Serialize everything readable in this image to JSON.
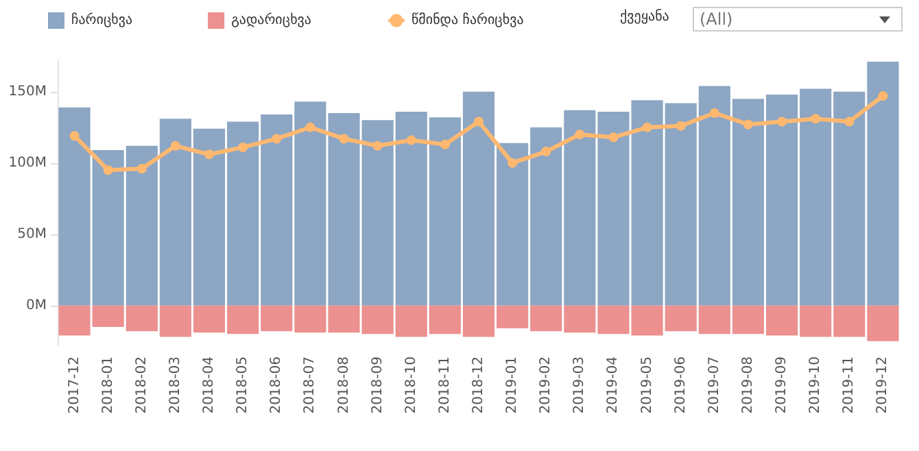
{
  "chart_data": {
    "type": "bar",
    "stacked": true,
    "categories": [
      "2017-12",
      "2018-01",
      "2018-02",
      "2018-03",
      "2018-04",
      "2018-05",
      "2018-06",
      "2018-07",
      "2018-08",
      "2018-09",
      "2018-10",
      "2018-11",
      "2018-12",
      "2019-01",
      "2019-02",
      "2019-03",
      "2019-04",
      "2019-05",
      "2019-06",
      "2019-07",
      "2019-08",
      "2019-09",
      "2019-10",
      "2019-11",
      "2019-12"
    ],
    "series": [
      {
        "name": "ჩარიცხვა",
        "color": "#8ca6c4",
        "values": [
          139,
          109,
          112,
          131,
          124,
          129,
          134,
          143,
          135,
          130,
          136,
          132,
          150,
          114,
          125,
          137,
          136,
          144,
          142,
          154,
          145,
          148,
          152,
          150,
          171
        ]
      },
      {
        "name": "გადარიცხვა",
        "color": "#ec9090",
        "values": [
          -21,
          -15,
          -18,
          -22,
          -19,
          -20,
          -18,
          -19,
          -19,
          -20,
          -22,
          -20,
          -22,
          -16,
          -18,
          -19,
          -20,
          -21,
          -18,
          -20,
          -20,
          -21,
          -22,
          -22,
          -25
        ]
      },
      {
        "name": "წმინდა ჩარიცხვა",
        "type": "line",
        "color": "#ffb870",
        "marker": "circle",
        "values": [
          119,
          95,
          96,
          112,
          106,
          111,
          117,
          125,
          117,
          112,
          116,
          113,
          129,
          100,
          108,
          120,
          118,
          125,
          126,
          135,
          127,
          129,
          131,
          129,
          147
        ]
      }
    ],
    "ylim": [
      -28,
      172
    ],
    "yticks": [
      {
        "value": 0,
        "label": "0M"
      },
      {
        "value": 50,
        "label": "50M"
      },
      {
        "value": 100,
        "label": "100M"
      },
      {
        "value": 150,
        "label": "150M"
      }
    ],
    "grid": false,
    "legend": "top left",
    "annotations": [
      "ქვეყანა",
      "(All)"
    ]
  }
}
